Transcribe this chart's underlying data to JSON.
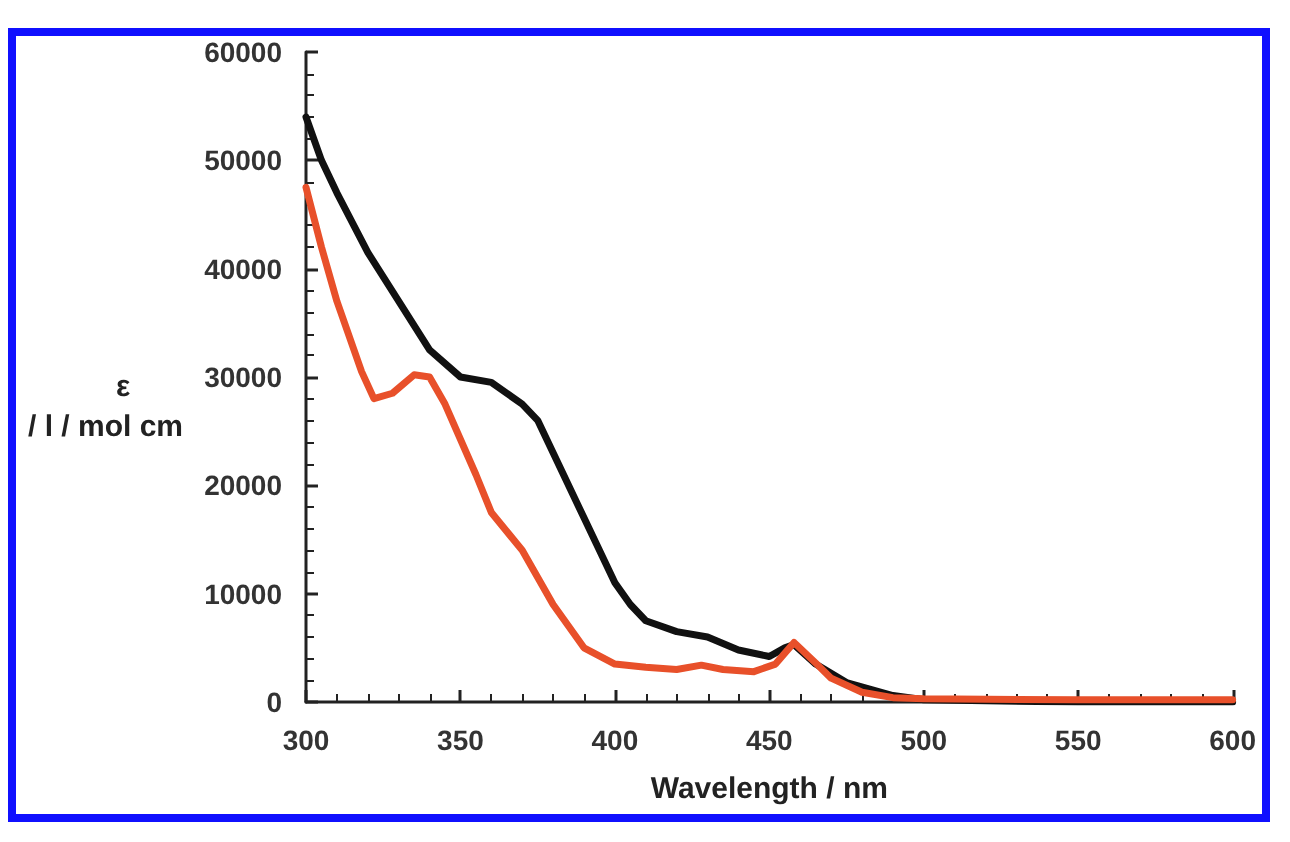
{
  "chart_data": {
    "type": "line",
    "xlabel": "Wavelength / nm",
    "ylabel": "ε\n/ l / mol cm",
    "xlim": [
      300,
      600
    ],
    "xticks": [
      300,
      350,
      400,
      450,
      500,
      550,
      600
    ],
    "ylim": [
      0,
      60000
    ],
    "yticks": [
      0,
      10000,
      20000,
      30000,
      40000,
      50000,
      60000
    ],
    "grid": false,
    "marker": "none",
    "line_style": "solid",
    "series": [
      {
        "color": "#111111",
        "x": [
          300,
          305,
          310,
          320,
          330,
          340,
          350,
          360,
          370,
          375,
          380,
          390,
          400,
          405,
          410,
          420,
          430,
          440,
          450,
          455,
          458,
          465,
          475,
          490,
          500,
          550,
          600
        ],
        "values": [
          54000,
          50000,
          47000,
          41500,
          37000,
          32500,
          30000,
          29500,
          27500,
          26000,
          23000,
          17000,
          11000,
          9000,
          7500,
          6500,
          6000,
          4800,
          4200,
          5000,
          5300,
          3500,
          1800,
          600,
          200,
          0,
          0
        ]
      },
      {
        "color": "#e8502a",
        "x": [
          300,
          305,
          310,
          318,
          322,
          328,
          335,
          340,
          345,
          355,
          360,
          370,
          380,
          390,
          400,
          410,
          420,
          428,
          435,
          445,
          452,
          458,
          465,
          470,
          480,
          490,
          500,
          550,
          600
        ],
        "values": [
          47500,
          42000,
          37000,
          30500,
          28000,
          28500,
          30200,
          30000,
          27500,
          21000,
          17500,
          14000,
          9000,
          5000,
          3500,
          3200,
          3000,
          3400,
          3000,
          2800,
          3500,
          5500,
          3600,
          2200,
          900,
          400,
          300,
          200,
          200
        ]
      }
    ]
  }
}
